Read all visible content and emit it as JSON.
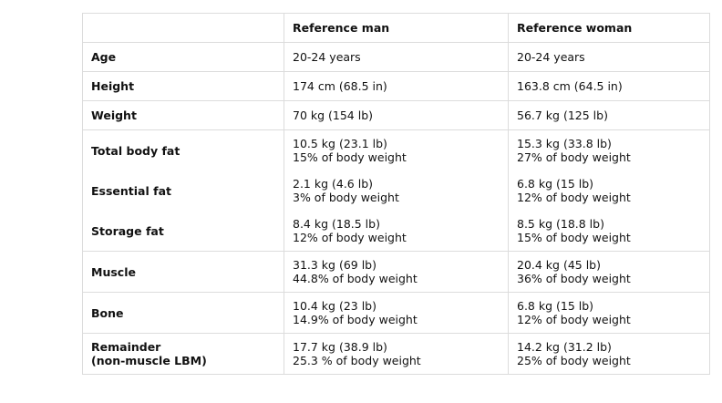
{
  "table": {
    "header": [
      "Reference man",
      "Reference woman"
    ],
    "sections": [
      {
        "rows": [
          {
            "label": [
              "Age"
            ],
            "man": [
              "20-24 years"
            ],
            "woman": [
              "20-24 years"
            ]
          }
        ]
      },
      {
        "rows": [
          {
            "label": [
              "Height"
            ],
            "man": [
              "174 cm (68.5 in)"
            ],
            "woman": [
              "163.8 cm (64.5 in)"
            ]
          }
        ]
      },
      {
        "rows": [
          {
            "label": [
              "Weight"
            ],
            "man": [
              "70 kg (154 lb)"
            ],
            "woman": [
              "56.7 kg (125 lb)"
            ]
          }
        ]
      },
      {
        "rows": [
          {
            "label": [
              "Total body fat"
            ],
            "man": [
              "10.5 kg (23.1 lb)",
              "15% of body weight"
            ],
            "woman": [
              "15.3 kg (33.8 lb)",
              "27% of body weight"
            ]
          },
          {
            "label": [
              "Essential fat"
            ],
            "man": [
              "2.1 kg (4.6 lb)",
              "3% of body weight"
            ],
            "woman": [
              "6.8 kg (15 lb)",
              "12% of body weight"
            ]
          },
          {
            "label": [
              "Storage fat"
            ],
            "man": [
              "8.4 kg (18.5 lb)",
              "12% of body weight"
            ],
            "woman": [
              "8.5 kg (18.8 lb)",
              "15% of body weight"
            ]
          }
        ]
      },
      {
        "rows": [
          {
            "label": [
              "Muscle"
            ],
            "man": [
              "31.3 kg (69 lb)",
              "44.8% of body weight"
            ],
            "woman": [
              "20.4 kg (45 lb)",
              "36% of body weight"
            ]
          }
        ]
      },
      {
        "rows": [
          {
            "label": [
              "Bone"
            ],
            "man": [
              "10.4 kg (23 lb)",
              "14.9% of body weight"
            ],
            "woman": [
              "6.8 kg (15 lb)",
              "12% of body weight"
            ]
          }
        ]
      },
      {
        "rows": [
          {
            "label": [
              "Remainder",
              "(non-muscle LBM)"
            ],
            "man": [
              "17.7 kg (38.9 lb)",
              "25.3 % of body weight"
            ],
            "woman": [
              "14.2 kg (31.2 lb)",
              "25% of body weight"
            ]
          }
        ]
      }
    ]
  }
}
